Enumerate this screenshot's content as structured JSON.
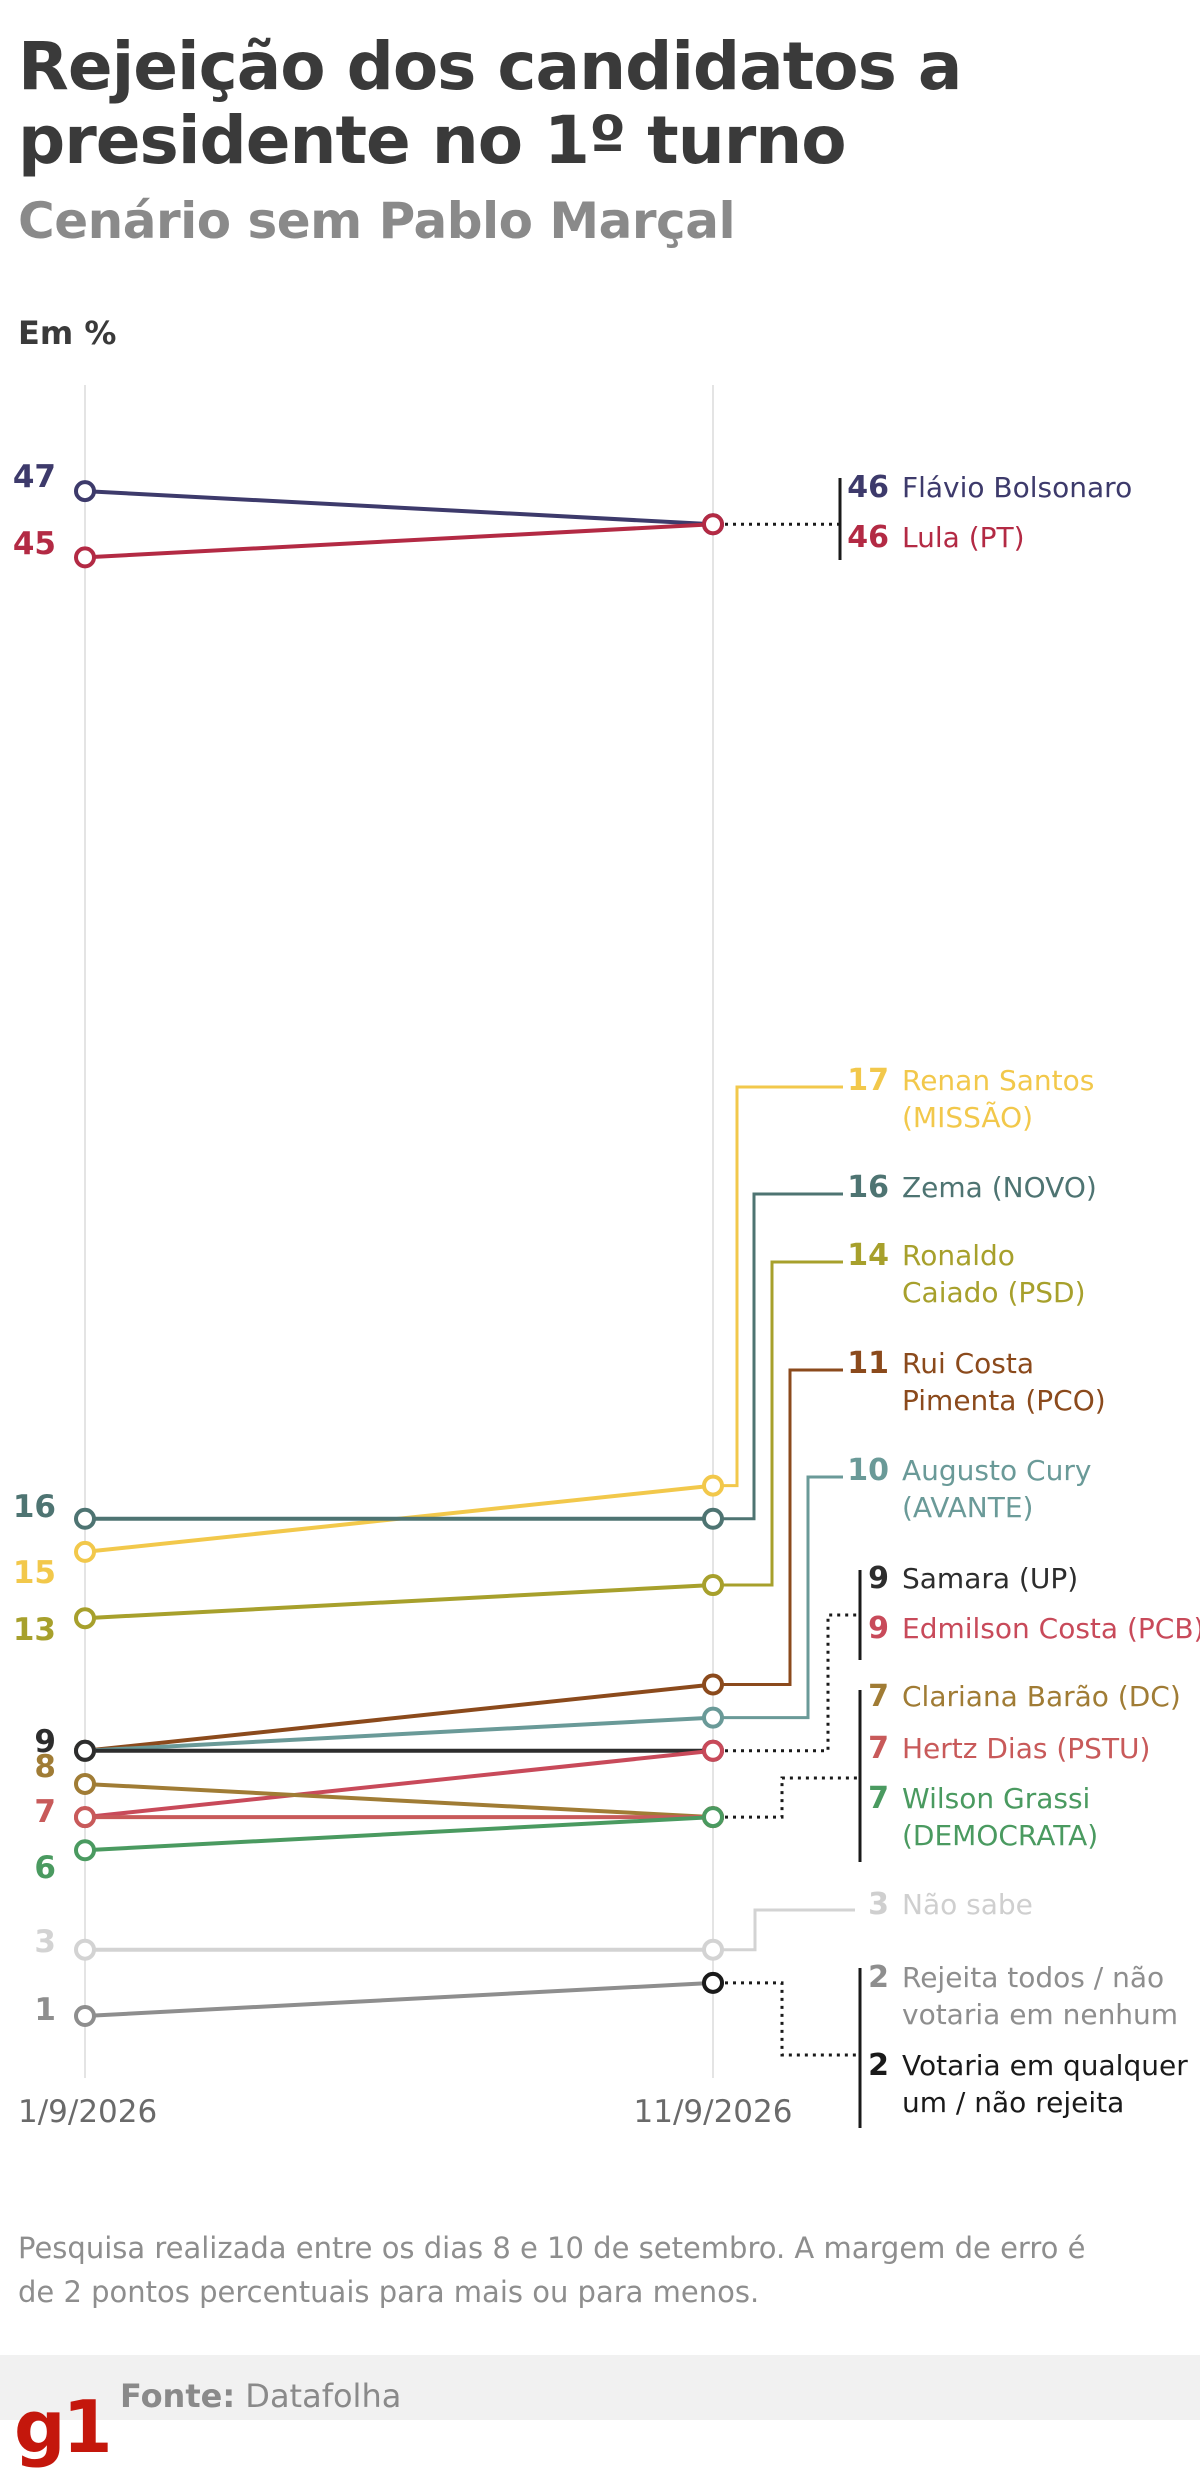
{
  "header": {
    "title": "Rejeição dos candidatos a presidente no 1º turno",
    "subtitle": "Cenário sem Pablo Marçal",
    "unit": "Em %"
  },
  "note": "Pesquisa realizada entre os dias 8 e 10 de setembro. A margem de erro é de 2 pontos percentuais para mais ou para menos.",
  "footer": {
    "logo": "g1",
    "source_label": "Fonte:",
    "source_value": "Datafolha"
  },
  "chart_data": {
    "type": "line",
    "x": [
      "1/9/2026",
      "11/9/2026"
    ],
    "ylim": [
      0,
      49
    ],
    "grid": false,
    "series": [
      {
        "name": "Flávio Bolsonaro",
        "values": [
          47,
          46
        ],
        "color": "#3d3a6b",
        "start_label": "47",
        "end_label": "46"
      },
      {
        "name": "Lula (PT)",
        "values": [
          45,
          46
        ],
        "color": "#b32a44",
        "start_label": "45",
        "end_label": "46"
      },
      {
        "name": "Renan Santos (MISSÃO)",
        "values": [
          15,
          17
        ],
        "color": "#f2c84b",
        "start_label": "15",
        "end_label": "17"
      },
      {
        "name": "Zema (NOVO)",
        "values": [
          16,
          16
        ],
        "color": "#4e7472",
        "start_label": "16",
        "end_label": "16"
      },
      {
        "name": "Ronaldo Caiado (PSD)",
        "values": [
          13,
          14
        ],
        "color": "#a7a02c",
        "start_label": "13",
        "end_label": "14"
      },
      {
        "name": "Rui Costa Pimenta (PCO)",
        "values": [
          9,
          11
        ],
        "color": "#8b4a1c",
        "start_label": "",
        "end_label": "11"
      },
      {
        "name": "Augusto Cury (AVANTE)",
        "values": [
          9,
          10
        ],
        "color": "#6a9a98",
        "start_label": "",
        "end_label": "10"
      },
      {
        "name": "Samara (UP)",
        "values": [
          9,
          9
        ],
        "color": "#2d2d2d",
        "start_label": "9",
        "end_label": "9"
      },
      {
        "name": "Edmilson Costa (PCB)",
        "values": [
          7,
          9
        ],
        "color": "#c84a5a",
        "start_label": "",
        "end_label": "9"
      },
      {
        "name": "Clariana Barão (DC)",
        "values": [
          8,
          7
        ],
        "color": "#a07c35",
        "start_label": "8",
        "end_label": "7"
      },
      {
        "name": "Hertz Dias (PSTU)",
        "values": [
          7,
          7
        ],
        "color": "#c85a5a",
        "start_label": "7",
        "end_label": "7"
      },
      {
        "name": "Wilson Grassi (DEMOCRATA)",
        "values": [
          6,
          7
        ],
        "color": "#4a9a60",
        "start_label": "6",
        "end_label": "7"
      },
      {
        "name": "Não sabe",
        "values": [
          3,
          3
        ],
        "color": "#d3d3d3",
        "start_label": "3",
        "end_label": "3"
      },
      {
        "name": "Rejeita todos / não votaria em nenhum",
        "values": [
          1,
          2
        ],
        "color": "#8e8e8e",
        "start_label": "1",
        "end_label": "2"
      },
      {
        "name": "Votaria em qualquer um / não rejeita",
        "values": [
          null,
          2
        ],
        "color": "#1a1a1a",
        "start_label": "",
        "end_label": "2"
      }
    ],
    "labels": [
      {
        "value": "46",
        "lines": [
          "Flávio Bolsonaro"
        ],
        "color": "#3d3a6b"
      },
      {
        "value": "46",
        "lines": [
          "Lula (PT)"
        ],
        "color": "#b32a44"
      },
      {
        "value": "17",
        "lines": [
          "Renan Santos",
          "(MISSÃO)"
        ],
        "color": "#f2c84b"
      },
      {
        "value": "16",
        "lines": [
          "Zema (NOVO)"
        ],
        "color": "#4e7472"
      },
      {
        "value": "14",
        "lines": [
          "Ronaldo",
          "Caiado (PSD)"
        ],
        "color": "#a7a02c"
      },
      {
        "value": "11",
        "lines": [
          "Rui Costa",
          "Pimenta (PCO)"
        ],
        "color": "#8b4a1c"
      },
      {
        "value": "10",
        "lines": [
          "Augusto Cury",
          "(AVANTE)"
        ],
        "color": "#6a9a98"
      },
      {
        "value": "9",
        "lines": [
          "Samara (UP)"
        ],
        "color": "#2d2d2d"
      },
      {
        "value": "9",
        "lines": [
          "Edmilson Costa (PCB)"
        ],
        "color": "#c84a5a"
      },
      {
        "value": "7",
        "lines": [
          "Clariana Barão (DC)"
        ],
        "color": "#a07c35"
      },
      {
        "value": "7",
        "lines": [
          "Hertz Dias (PSTU)"
        ],
        "color": "#c85a5a"
      },
      {
        "value": "7",
        "lines": [
          "Wilson Grassi",
          "(DEMOCRATA)"
        ],
        "color": "#4a9a60"
      },
      {
        "value": "3",
        "lines": [
          "Não sabe"
        ],
        "color": "#cfcfcf"
      },
      {
        "value": "2",
        "lines": [
          "Rejeita todos / não",
          "votaria em nenhum"
        ],
        "color": "#8e8e8e"
      },
      {
        "value": "2",
        "lines": [
          "Votaria em qualquer",
          "um / não rejeita"
        ],
        "color": "#1a1a1a"
      }
    ]
  }
}
